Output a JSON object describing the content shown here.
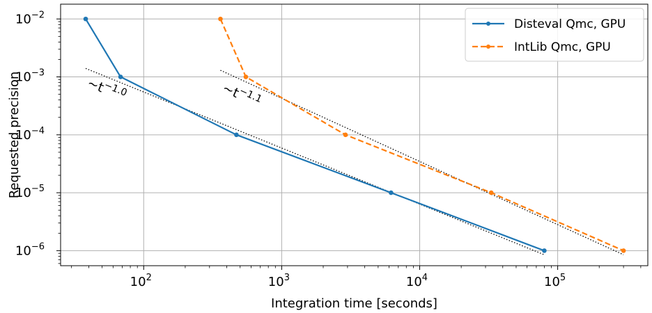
{
  "chart_data": {
    "type": "line",
    "xlabel": "Integration time [seconds]",
    "ylabel": "Requested precision",
    "xscale": "log",
    "yscale": "log",
    "xlim": [
      25,
      450000
    ],
    "ylim": [
      5.5e-07,
      0.018
    ],
    "grid": true,
    "legend_position": "top-right",
    "x_ticks": [
      {
        "value": 100,
        "base": "10",
        "exp": "2"
      },
      {
        "value": 1000,
        "base": "10",
        "exp": "3"
      },
      {
        "value": 10000,
        "base": "10",
        "exp": "4"
      },
      {
        "value": 100000,
        "base": "10",
        "exp": "5"
      }
    ],
    "y_ticks": [
      {
        "value": 0.01,
        "base": "10",
        "exp": "−2"
      },
      {
        "value": 0.001,
        "base": "10",
        "exp": "−3"
      },
      {
        "value": 0.0001,
        "base": "10",
        "exp": "−4"
      },
      {
        "value": 1e-05,
        "base": "10",
        "exp": "−5"
      },
      {
        "value": 1e-06,
        "base": "10",
        "exp": "−6"
      }
    ],
    "series": [
      {
        "name": "Disteval Qmc, GPU",
        "color": "#1f77b4",
        "dash": "solid",
        "x": [
          38,
          68,
          470,
          6200,
          80000
        ],
        "y": [
          0.01,
          0.001,
          0.0001,
          1e-05,
          1e-06
        ]
      },
      {
        "name": "IntLib Qmc, GPU",
        "color": "#ff7f0e",
        "dash": "dashed",
        "x": [
          360,
          550,
          2900,
          33000,
          300000
        ],
        "y": [
          0.01,
          0.001,
          0.0001,
          1e-05,
          1e-06
        ]
      }
    ],
    "fit_lines": [
      {
        "x": [
          38,
          80000
        ],
        "y": [
          0.0014,
          8.5e-07
        ],
        "label_prefix": "~t",
        "label_exp": "−1.0"
      },
      {
        "x": [
          360,
          300000
        ],
        "y": [
          0.0013,
          8.5e-07
        ],
        "label_prefix": "~t",
        "label_exp": "−1.1"
      }
    ]
  }
}
